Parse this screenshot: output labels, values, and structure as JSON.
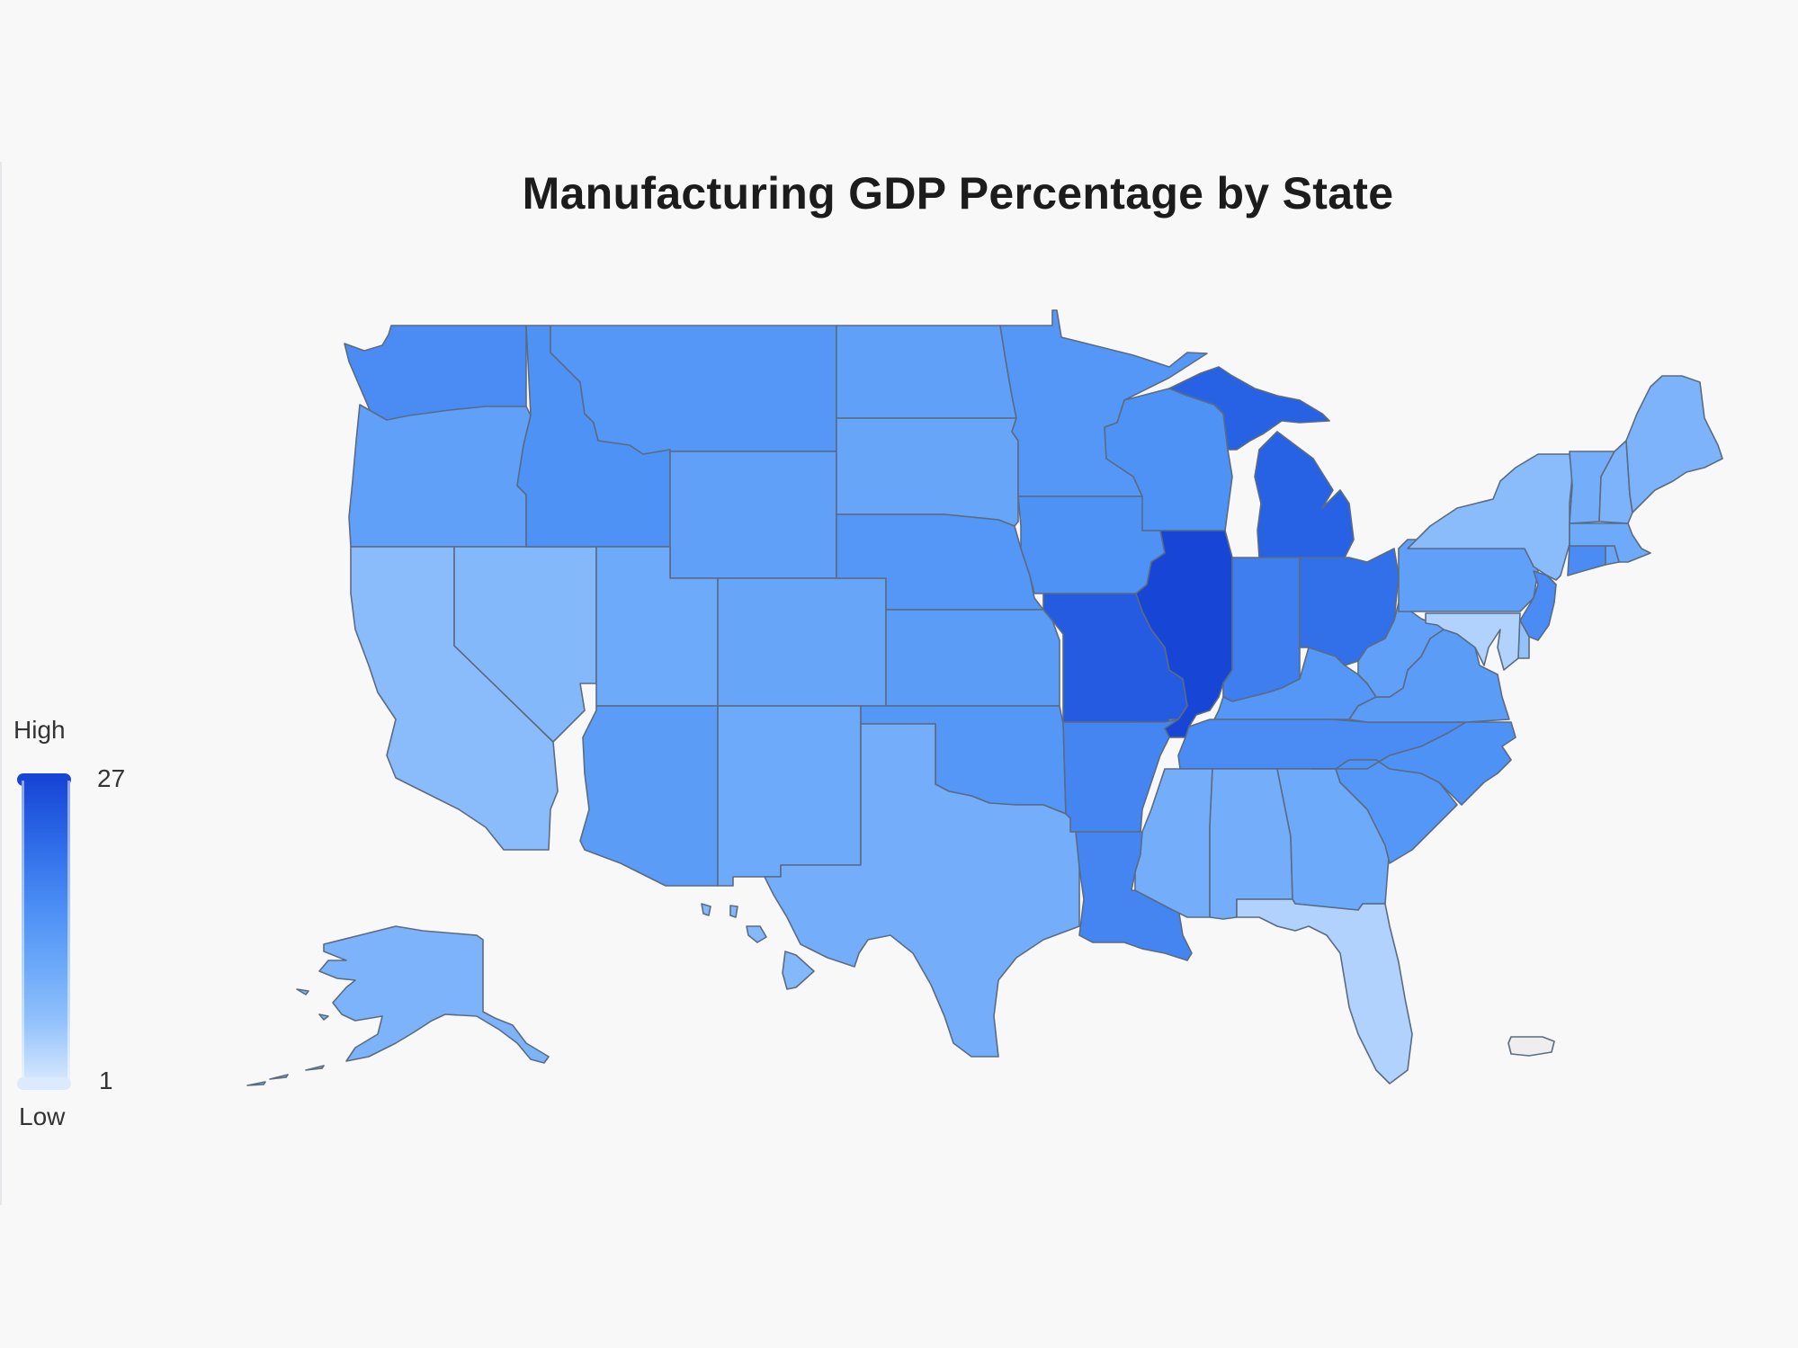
{
  "title": "Manufacturing GDP Percentage by State",
  "legend": {
    "high_label": "High",
    "low_label": "Low",
    "max": "27",
    "min": "1",
    "colors": [
      "#dbeaff",
      "#90c0fb",
      "#6aa8f9",
      "#4c8ff5",
      "#2d6ae8",
      "#1746d6"
    ]
  },
  "no_data_color": "#eeeeee",
  "chart_data": {
    "type": "choropleth",
    "title": "Manufacturing GDP Percentage by State",
    "value_range": [
      1,
      27
    ],
    "legend": {
      "position": "left",
      "high_label": "High",
      "low_label": "Low"
    },
    "states": [
      {
        "name": "Washington",
        "code": "WA",
        "value": 17
      },
      {
        "name": "Oregon",
        "code": "OR",
        "value": 13
      },
      {
        "name": "California",
        "code": "CA",
        "value": 7
      },
      {
        "name": "Nevada",
        "code": "NV",
        "value": 8
      },
      {
        "name": "Idaho",
        "code": "ID",
        "value": 16
      },
      {
        "name": "Montana",
        "code": "MT",
        "value": 15
      },
      {
        "name": "Wyoming",
        "code": "WY",
        "value": 13
      },
      {
        "name": "Utah",
        "code": "UT",
        "value": 11
      },
      {
        "name": "Colorado",
        "code": "CO",
        "value": 12
      },
      {
        "name": "Arizona",
        "code": "AZ",
        "value": 14
      },
      {
        "name": "New Mexico",
        "code": "NM",
        "value": 11
      },
      {
        "name": "North Dakota",
        "code": "ND",
        "value": 13
      },
      {
        "name": "South Dakota",
        "code": "SD",
        "value": 12
      },
      {
        "name": "Nebraska",
        "code": "NE",
        "value": 15
      },
      {
        "name": "Kansas",
        "code": "KS",
        "value": 14
      },
      {
        "name": "Oklahoma",
        "code": "OK",
        "value": 15
      },
      {
        "name": "Texas",
        "code": "TX",
        "value": 10
      },
      {
        "name": "Minnesota",
        "code": "MN",
        "value": 15
      },
      {
        "name": "Iowa",
        "code": "IA",
        "value": 16
      },
      {
        "name": "Missouri",
        "code": "MO",
        "value": 24
      },
      {
        "name": "Arkansas",
        "code": "AR",
        "value": 18
      },
      {
        "name": "Louisiana",
        "code": "LA",
        "value": 18
      },
      {
        "name": "Wisconsin",
        "code": "WI",
        "value": 16
      },
      {
        "name": "Illinois",
        "code": "IL",
        "value": 27
      },
      {
        "name": "Michigan",
        "code": "MI",
        "value": 23
      },
      {
        "name": "Indiana",
        "code": "IN",
        "value": 19
      },
      {
        "name": "Ohio",
        "code": "OH",
        "value": 21
      },
      {
        "name": "Kentucky",
        "code": "KY",
        "value": 15
      },
      {
        "name": "Tennessee",
        "code": "TN",
        "value": 17
      },
      {
        "name": "Mississippi",
        "code": "MS",
        "value": 10
      },
      {
        "name": "Alabama",
        "code": "AL",
        "value": 10
      },
      {
        "name": "Georgia",
        "code": "GA",
        "value": 11
      },
      {
        "name": "Florida",
        "code": "FL",
        "value": 4
      },
      {
        "name": "South Carolina",
        "code": "SC",
        "value": 15
      },
      {
        "name": "North Carolina",
        "code": "NC",
        "value": 16
      },
      {
        "name": "Virginia",
        "code": "VA",
        "value": 14
      },
      {
        "name": "West Virginia",
        "code": "WV",
        "value": 13
      },
      {
        "name": "Pennsylvania",
        "code": "PA",
        "value": 13
      },
      {
        "name": "New York",
        "code": "NY",
        "value": 7
      },
      {
        "name": "New Jersey",
        "code": "NJ",
        "value": 17
      },
      {
        "name": "Delaware",
        "code": "DE",
        "value": 6
      },
      {
        "name": "Maryland",
        "code": "MD",
        "value": 4
      },
      {
        "name": "Connecticut",
        "code": "CT",
        "value": 17
      },
      {
        "name": "Rhode Island",
        "code": "RI",
        "value": 12
      },
      {
        "name": "Massachusetts",
        "code": "MA",
        "value": 11
      },
      {
        "name": "Vermont",
        "code": "VT",
        "value": 10
      },
      {
        "name": "New Hampshire",
        "code": "NH",
        "value": 9
      },
      {
        "name": "Maine",
        "code": "ME",
        "value": 9
      },
      {
        "name": "Alaska",
        "code": "AK",
        "value": 9
      },
      {
        "name": "Hawaii",
        "code": "HI",
        "value": 8
      },
      {
        "name": "Puerto Rico",
        "code": "PR",
        "value": null
      }
    ]
  }
}
